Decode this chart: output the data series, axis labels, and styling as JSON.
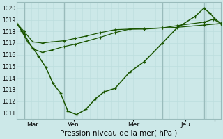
{
  "xlabel": "Pression niveau de la mer( hPa )",
  "bg_color": "#cce8e8",
  "grid_color_major": "#aacccc",
  "grid_color_minor": "#bbdddd",
  "line_color": "#1a5500",
  "ylim": [
    1010.5,
    1020.5
  ],
  "xlim": [
    0,
    280
  ],
  "yticks": [
    1011,
    1012,
    1013,
    1014,
    1015,
    1016,
    1017,
    1018,
    1019,
    1020
  ],
  "xtick_positions": [
    22,
    78,
    160,
    232,
    272
  ],
  "xtick_labels": [
    "Mar",
    "Ven",
    "Mer",
    "Jeu",
    ""
  ],
  "day_vlines": [
    10,
    65,
    200,
    257
  ],
  "series1_x": [
    0,
    10,
    22,
    35,
    48,
    65,
    80,
    95,
    115,
    135,
    155,
    175,
    200,
    220,
    257,
    275,
    280
  ],
  "series1_y": [
    1018.7,
    1018.0,
    1017.1,
    1017.0,
    1017.1,
    1017.2,
    1017.4,
    1017.6,
    1017.9,
    1018.15,
    1018.2,
    1018.25,
    1018.3,
    1018.35,
    1018.55,
    1018.65,
    1018.7
  ],
  "series2_x": [
    0,
    10,
    22,
    35,
    48,
    65,
    80,
    95,
    115,
    135,
    155,
    175,
    200,
    220,
    257,
    270,
    280
  ],
  "series2_y": [
    1018.7,
    1017.8,
    1016.5,
    1016.2,
    1016.4,
    1016.7,
    1016.9,
    1017.15,
    1017.5,
    1017.9,
    1018.2,
    1018.2,
    1018.3,
    1018.5,
    1018.8,
    1019.05,
    1018.7
  ],
  "series3_x": [
    0,
    7,
    15,
    22,
    30,
    40,
    50,
    60,
    70,
    82,
    95,
    108,
    120,
    135,
    155,
    175,
    200,
    220,
    245,
    257,
    265,
    272,
    280
  ],
  "series3_y": [
    1018.7,
    1018.0,
    1017.1,
    1016.6,
    1015.85,
    1014.9,
    1013.5,
    1012.7,
    1011.15,
    1010.85,
    1011.3,
    1012.2,
    1012.8,
    1013.1,
    1014.5,
    1015.4,
    1017.0,
    1018.3,
    1019.3,
    1020.0,
    1019.6,
    1019.1,
    1018.7
  ]
}
